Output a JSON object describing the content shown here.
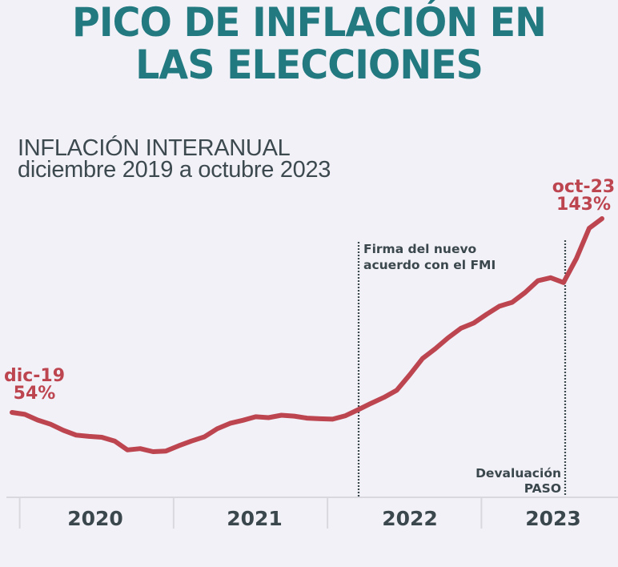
{
  "header": {
    "title_line1": "PICO DE INFLACIÓN EN",
    "title_line2": "LAS ELECCIONES",
    "subtitle_line1": "INFLACIÓN INTERANUAL",
    "subtitle_line2": "diciembre 2019 a octubre 2023"
  },
  "colors": {
    "title": "#227a80",
    "line": "#bd4550",
    "annotation": "#3a474c",
    "background": "#f2f1f7",
    "axis": "#d9d8de"
  },
  "chart_data": {
    "type": "line",
    "title": "INFLACIÓN INTERANUAL",
    "subtitle": "diciembre 2019 a octubre 2023",
    "xlabel": "",
    "ylabel": "",
    "unit": "%",
    "grid": false,
    "x": [
      "dic-19",
      "ene-20",
      "feb-20",
      "mar-20",
      "abr-20",
      "may-20",
      "jun-20",
      "jul-20",
      "ago-20",
      "sep-20",
      "oct-20",
      "nov-20",
      "dic-20",
      "ene-21",
      "feb-21",
      "mar-21",
      "abr-21",
      "may-21",
      "jun-21",
      "jul-21",
      "ago-21",
      "sep-21",
      "oct-21",
      "nov-21",
      "dic-21",
      "ene-22",
      "feb-22",
      "mar-22",
      "abr-22",
      "may-22",
      "jun-22",
      "jul-22",
      "ago-22",
      "sep-22",
      "oct-22",
      "nov-22",
      "dic-22",
      "ene-23",
      "feb-23",
      "mar-23",
      "abr-23",
      "may-23",
      "jun-23",
      "jul-23",
      "ago-23",
      "sep-23",
      "oct-23"
    ],
    "series": [
      {
        "name": "Inflación interanual",
        "values": [
          53.8,
          52.9,
          50.3,
          48.4,
          45.6,
          43.4,
          42.8,
          42.4,
          40.7,
          36.6,
          37.2,
          35.8,
          36.1,
          38.5,
          40.7,
          42.6,
          46.3,
          48.8,
          50.2,
          51.8,
          51.4,
          52.5,
          52.1,
          51.2,
          50.9,
          50.7,
          52.3,
          55.1,
          58.0,
          60.7,
          64.0,
          71.0,
          78.5,
          83.0,
          88.0,
          92.4,
          94.8,
          98.8,
          102.5,
          104.3,
          108.8,
          114.2,
          115.6,
          113.4,
          124.4,
          138.3,
          142.7
        ]
      }
    ],
    "yrange": [
      30,
      150
    ],
    "x_axis_groups": [
      {
        "label": "2020",
        "start": "ene-20",
        "end": "dic-20"
      },
      {
        "label": "2021",
        "start": "ene-21",
        "end": "dic-21"
      },
      {
        "label": "2022",
        "start": "ene-22",
        "end": "dic-22"
      },
      {
        "label": "2023",
        "start": "ene-23",
        "end": "oct-23"
      }
    ],
    "start_label": {
      "date": "dic-19",
      "value": "54%"
    },
    "end_label": {
      "date": "oct-23",
      "value": "143%"
    },
    "annotations": [
      {
        "at": "mar-22",
        "text_line1": "Firma del nuevo",
        "text_line2": "acuerdo con el FMI",
        "style": "dotted-vertical"
      },
      {
        "at": "ago-23",
        "text_line1": "Devaluación",
        "text_line2": "PASO",
        "style": "dotted-vertical"
      }
    ]
  }
}
